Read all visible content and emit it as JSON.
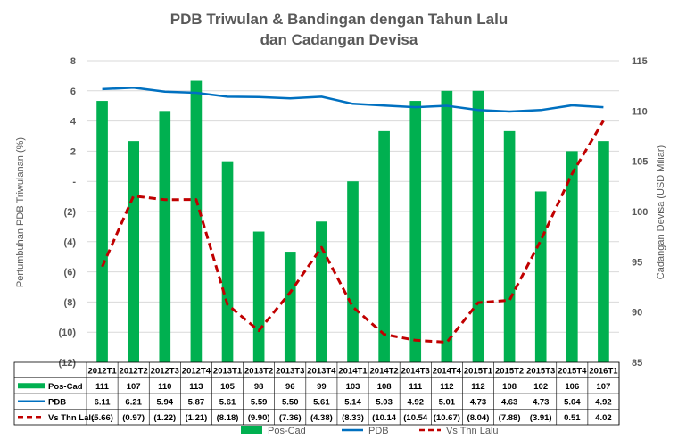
{
  "chart_data": {
    "type": "bar-line-combo",
    "title_line1": "PDB Triwulan & Bandingan dengan Tahun Lalu",
    "title_line2": "dan Cadangan Devisa",
    "ylabel_left": "Pertumbuhan PDB Triwulanan (%)",
    "ylabel_right": "Cadangan Devisa (USD Miliar)",
    "left_ylim": [
      -12,
      8
    ],
    "right_ylim": [
      85,
      115
    ],
    "left_ticks": [
      8,
      6,
      4,
      2,
      0,
      -2,
      -4,
      -6,
      -8,
      -10,
      -12
    ],
    "left_tick_labels": [
      "8",
      "6",
      "4",
      "2",
      "-",
      "(2)",
      "(4)",
      "(6)",
      "(8)",
      "(10)",
      "(12)"
    ],
    "right_ticks": [
      115,
      110,
      105,
      100,
      95,
      90,
      85
    ],
    "right_tick_labels": [
      "115",
      "110",
      "105",
      "100",
      "95",
      "90",
      "85"
    ],
    "grid": "horizontal",
    "legend_position": "bottom",
    "categories": [
      "2012T1",
      "2012T2",
      "2012T3",
      "2012T4",
      "2013T1",
      "2013T2",
      "2013T3",
      "2013T4",
      "2014T1",
      "2014T2",
      "2014T3",
      "2014T4",
      "2015T1",
      "2015T2",
      "2015T3",
      "2015T4",
      "2016T1"
    ],
    "series": [
      {
        "name": "Pos-Cad",
        "type": "bar",
        "axis": "right",
        "color": "#00B050",
        "values": [
          111,
          107,
          110,
          113,
          105,
          98,
          96,
          99,
          103,
          108,
          111,
          112,
          112,
          108,
          102,
          106,
          107
        ],
        "labels": [
          "111",
          "107",
          "110",
          "113",
          "105",
          "98",
          "96",
          "99",
          "103",
          "108",
          "111",
          "112",
          "112",
          "108",
          "102",
          "106",
          "107"
        ]
      },
      {
        "name": "PDB",
        "type": "line",
        "axis": "left",
        "color": "#0070C0",
        "values": [
          6.11,
          6.21,
          5.94,
          5.87,
          5.61,
          5.59,
          5.5,
          5.61,
          5.14,
          5.03,
          4.92,
          5.01,
          4.73,
          4.63,
          4.73,
          5.04,
          4.92
        ],
        "labels": [
          "6.11",
          "6.21",
          "5.94",
          "5.87",
          "5.61",
          "5.59",
          "5.50",
          "5.61",
          "5.14",
          "5.03",
          "4.92",
          "5.01",
          "4.73",
          "4.63",
          "4.73",
          "5.04",
          "4.92"
        ]
      },
      {
        "name": "Vs Thn Lalu",
        "type": "line",
        "style": "dashed",
        "axis": "left",
        "color": "#C00000",
        "values": [
          -5.66,
          -0.97,
          -1.22,
          -1.21,
          -8.18,
          -9.9,
          -7.36,
          -4.38,
          -8.33,
          -10.14,
          -10.54,
          -10.67,
          -8.04,
          -7.88,
          -3.91,
          0.51,
          4.02
        ],
        "labels": [
          "(5.66)",
          "(0.97)",
          "(1.22)",
          "(1.21)",
          "(8.18)",
          "(9.90)",
          "(7.36)",
          "(4.38)",
          "(8.33)",
          "(10.14",
          "(10.54",
          "(10.67)",
          "(8.04)",
          "(7.88)",
          "(3.91)",
          "0.51",
          "4.02"
        ]
      }
    ]
  }
}
